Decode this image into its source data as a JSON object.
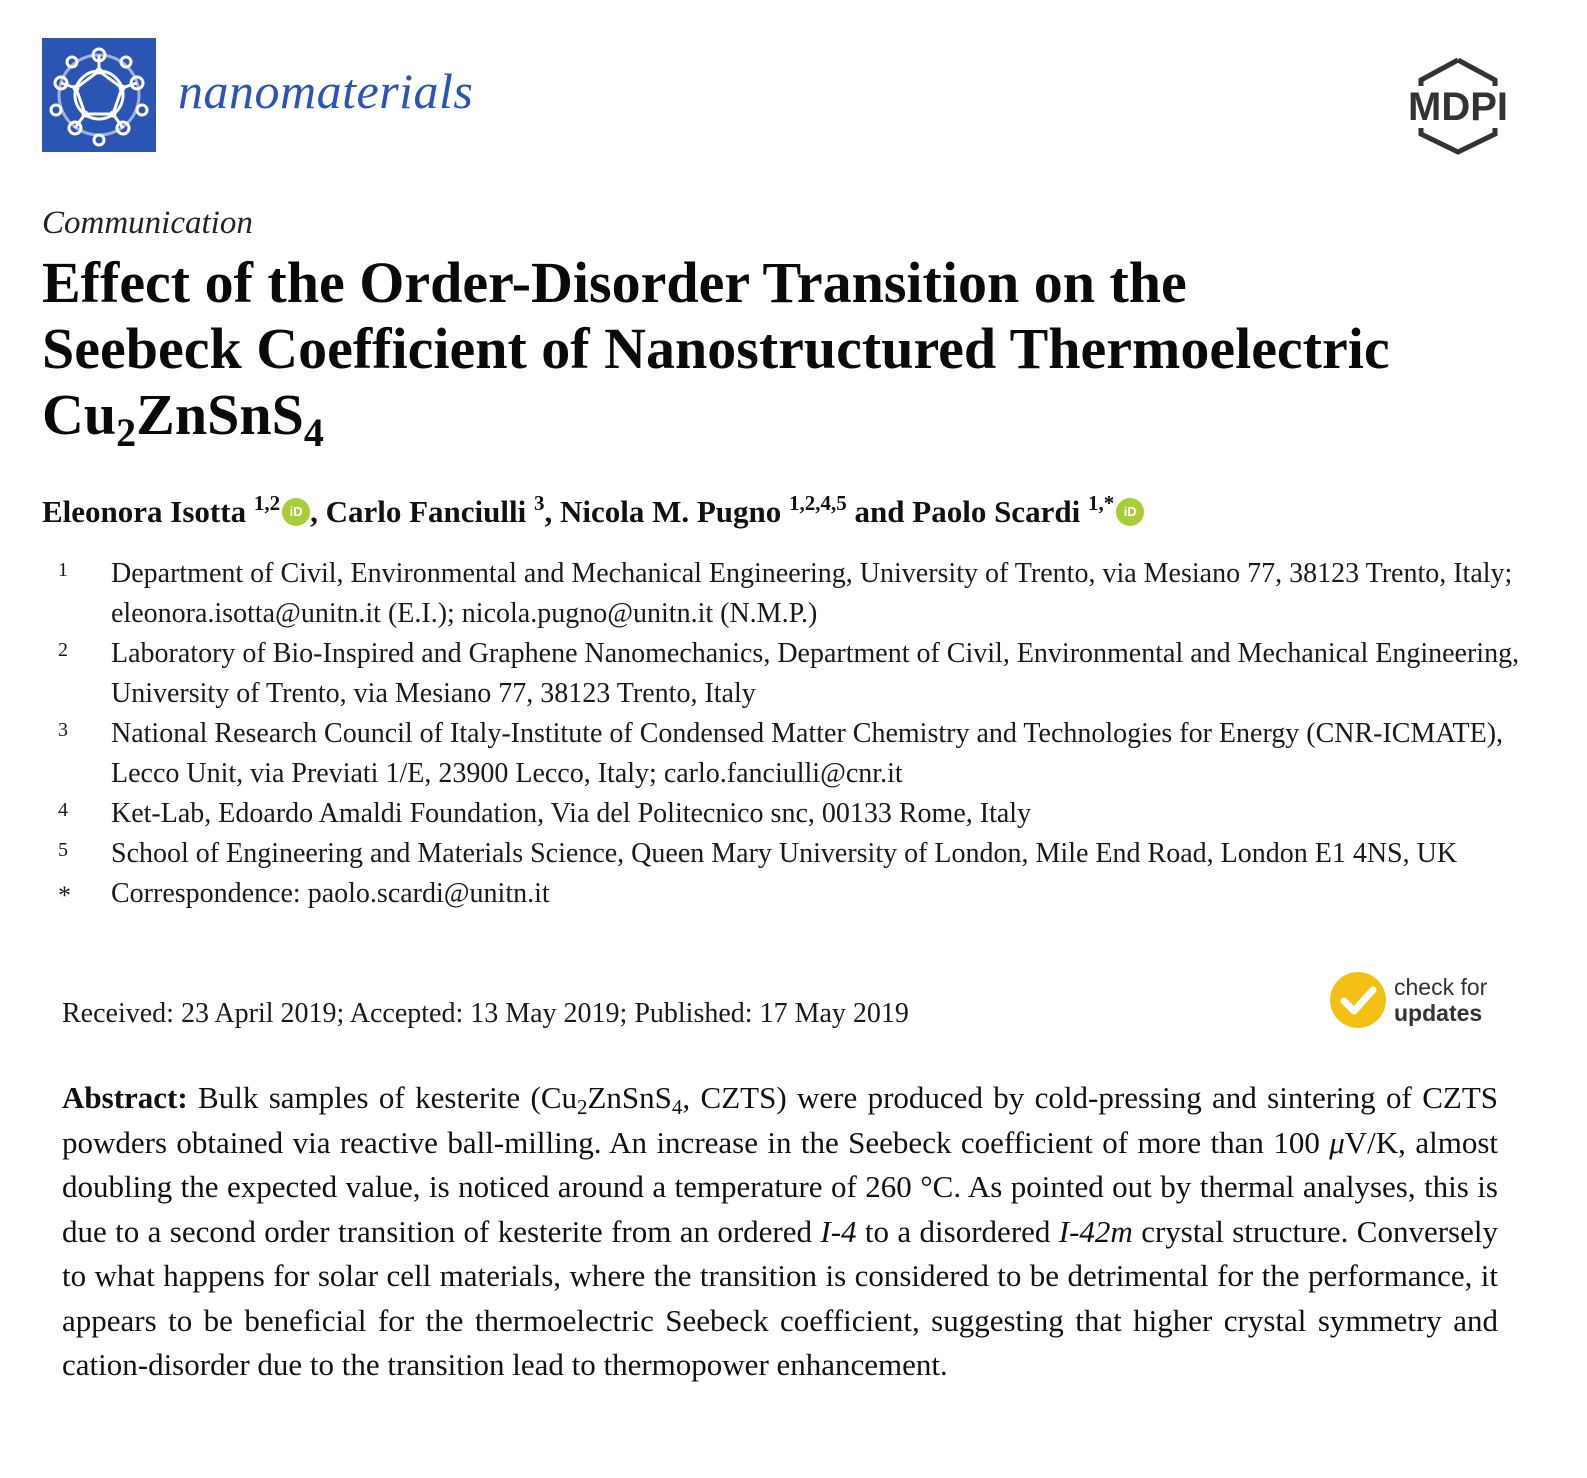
{
  "header": {
    "journal_name": "nanomaterials",
    "publisher": "MDPI",
    "journal_logo_icon": "fullerene-icon",
    "accent_color": "#2b55b2"
  },
  "article_type": "Communication",
  "title": {
    "line1": "Effect of the Order-Disorder Transition on the",
    "line2": "Seebeck Coefficient of Nanostructured Thermoelectric",
    "formula_parts": [
      "Cu",
      "2",
      "ZnSnS",
      "4"
    ]
  },
  "authors": [
    {
      "name": "Eleonora Isotta",
      "sup": "1,2",
      "orcid": true,
      "sep": ", "
    },
    {
      "name": "Carlo Fanciulli",
      "sup": "3",
      "orcid": false,
      "sep": ", "
    },
    {
      "name": "Nicola M. Pugno",
      "sup": "1,2,4,5",
      "orcid": false,
      "sep": " and "
    },
    {
      "name": "Paolo Scardi",
      "sup": "1,*",
      "orcid": true,
      "sep": ""
    }
  ],
  "orcid_label": "iD",
  "affiliations": [
    {
      "num": "1",
      "text": "Department of Civil, Environmental and Mechanical Engineering, University of Trento, via Mesiano 77, 38123 Trento, Italy; eleonora.isotta@unitn.it (E.I.); nicola.pugno@unitn.it (N.M.P.)"
    },
    {
      "num": "2",
      "text": "Laboratory of Bio-Inspired and Graphene Nanomechanics, Department of Civil, Environmental and Mechanical Engineering, University of Trento, via Mesiano 77, 38123 Trento, Italy"
    },
    {
      "num": "3",
      "text": "National Research Council of Italy-Institute of Condensed Matter Chemistry and Technologies for Energy (CNR-ICMATE), Lecco Unit, via Previati 1/E, 23900 Lecco, Italy; carlo.fanciulli@cnr.it"
    },
    {
      "num": "4",
      "text": "Ket-Lab, Edoardo Amaldi Foundation, Via del Politecnico snc, 00133 Rome, Italy"
    },
    {
      "num": "5",
      "text": "School of Engineering and Materials Science, Queen Mary University of London, Mile End Road, London E1 4NS, UK"
    },
    {
      "num": "*",
      "text": "Correspondence: paolo.scardi@unitn.it"
    }
  ],
  "dates": "Received: 23 April 2019; Accepted: 13 May 2019; Published: 17 May 2019",
  "updates_badge": {
    "line1": "check for",
    "line2": "updates",
    "color": "#f5c016"
  },
  "abstract": {
    "label": "Abstract:",
    "p1": " Bulk samples of kesterite (Cu",
    "p1_sub1": "2",
    "p2": "ZnSnS",
    "p2_sub": "4",
    "p3": ", CZTS) were produced by cold-pressing and sintering of CZTS powders obtained via reactive ball-milling. An increase in the Seebeck coefficient of more than 100 ",
    "mu": "μ",
    "p4": "V/K, almost doubling the expected value, is noticed around a temperature of 260 °C. As pointed out by thermal analyses, this is due to a second order transition of kesterite from an ordered ",
    "i1": "I-4",
    "p5": " to a disordered ",
    "i2": "I-42m",
    "p6": " crystal structure. Conversely to what happens for solar cell materials, where the transition is considered to be detrimental for the performance, it appears to be beneficial for the thermoelectric Seebeck coefficient, suggesting that higher crystal symmetry and cation-disorder due to the transition lead to thermopower enhancement."
  }
}
